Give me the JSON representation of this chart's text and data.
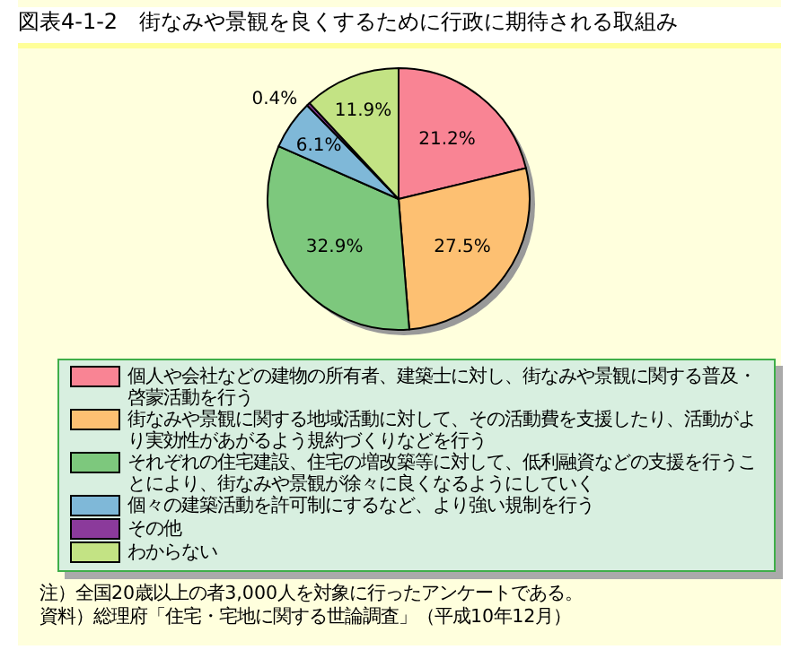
{
  "chart_data": {
    "type": "pie",
    "title": "図表4-1-2　街なみや景観を良くするために行政に期待される取組み",
    "categories": [
      "個人や会社などの建物の所有者、建築士に対し、街なみや景観に関する普及・啓蒙活動を行う",
      "街なみや景観に関する地域活動に対して、その活動費を支援したり、活動がより実効性があがるよう規約づくりなどを行う",
      "それぞれの住宅建設、住宅の増改築等に対して、低利融資などの支援を行うことにより、街なみや景観が徐々に良くなるようにしていく",
      "個々の建築活動を許可制にするなど、より強い規制を行う",
      "その他",
      "わからない"
    ],
    "values": [
      21.2,
      27.5,
      32.9,
      6.1,
      0.4,
      11.9
    ],
    "value_labels": [
      "21.2%",
      "27.5%",
      "32.9%",
      "6.1%",
      "0.4%",
      "11.9%"
    ],
    "colors": [
      "#f98494",
      "#fdc072",
      "#7dc87d",
      "#7fb8d8",
      "#8b3a9b",
      "#c3e384"
    ],
    "legend": "bottom",
    "annotations": [
      "注）全国20歳以上の者3,000人を対象に行ったアンケートである。",
      "資料）総理府「住宅・宅地に関する世論調査」（平成10年12月）"
    ]
  }
}
